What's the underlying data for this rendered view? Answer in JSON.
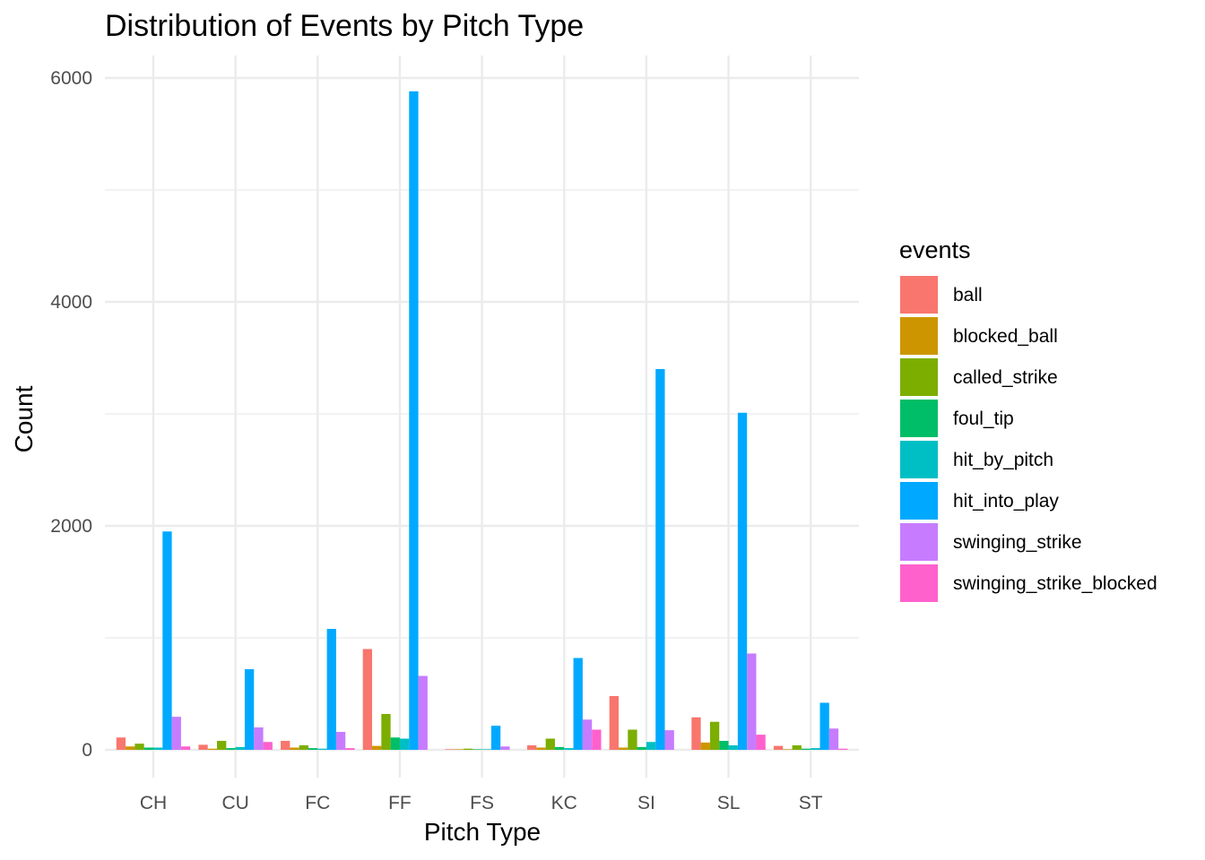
{
  "chart_data": {
    "type": "bar",
    "title": "Distribution of Events by Pitch Type",
    "xlabel": "Pitch Type",
    "ylabel": "Count",
    "ylim": [
      -250,
      6200
    ],
    "yticks": [
      0,
      2000,
      4000,
      6000
    ],
    "grid": true,
    "legend": {
      "title": "events",
      "placement": "right"
    },
    "categories": [
      "CH",
      "CU",
      "FC",
      "FF",
      "FS",
      "KC",
      "SI",
      "SL",
      "ST"
    ],
    "series": [
      {
        "name": "ball",
        "color": "#F8766D",
        "values": [
          110,
          45,
          80,
          900,
          5,
          40,
          480,
          290,
          35
        ]
      },
      {
        "name": "blocked_ball",
        "color": "#CD9600",
        "values": [
          30,
          10,
          20,
          35,
          5,
          20,
          20,
          65,
          5
        ]
      },
      {
        "name": "called_strike",
        "color": "#7CAE00",
        "values": [
          55,
          80,
          40,
          320,
          10,
          100,
          180,
          250,
          40
        ]
      },
      {
        "name": "foul_tip",
        "color": "#00BE67",
        "values": [
          20,
          15,
          15,
          110,
          5,
          25,
          25,
          80,
          10
        ]
      },
      {
        "name": "hit_by_pitch",
        "color": "#00BFC4",
        "values": [
          20,
          25,
          10,
          100,
          5,
          15,
          70,
          40,
          15
        ]
      },
      {
        "name": "hit_into_play",
        "color": "#00A9FF",
        "values": [
          1950,
          720,
          1080,
          5880,
          215,
          820,
          3400,
          3010,
          420
        ]
      },
      {
        "name": "swinging_strike",
        "color": "#C77CFF",
        "values": [
          295,
          200,
          160,
          660,
          30,
          270,
          175,
          860,
          190
        ]
      },
      {
        "name": "swinging_strike_blocked",
        "color": "#FF61CC",
        "values": [
          30,
          70,
          15,
          0,
          0,
          180,
          0,
          135,
          10
        ]
      }
    ]
  }
}
